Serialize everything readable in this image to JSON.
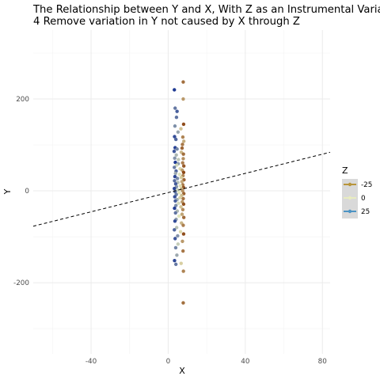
{
  "chart_data": {
    "type": "scatter",
    "title": "The Relationship between Y and X, With Z as an Instrumental Variable",
    "subtitle": "4 Remove variation in Y not caused by X through Z",
    "xlabel": "X",
    "ylabel": "Y",
    "xlim": [
      -70,
      84
    ],
    "ylim": [
      -355,
      350
    ],
    "x_ticks": [
      -40,
      0,
      40,
      80
    ],
    "y_ticks": [
      -200,
      0,
      200
    ],
    "x_tick_labels": [
      "-40",
      "0",
      "40",
      "80"
    ],
    "y_tick_labels": [
      "-200",
      "0",
      "200"
    ],
    "grid": true,
    "legend": {
      "title": "Z",
      "position": "right",
      "entries": [
        {
          "label": "-25",
          "color": "#b8953a"
        },
        {
          "label": "0",
          "color": "#e8ecc0"
        },
        {
          "label": "25",
          "color": "#4d94c4"
        }
      ]
    },
    "fit_line": {
      "style": "dashed",
      "color": "#000000",
      "x": [
        -70,
        84
      ],
      "y": [
        -77,
        84
      ]
    },
    "color_scale": {
      "low": "#8b4513",
      "mid": "#e8ecc0",
      "high": "#1f3a93",
      "domain": [
        -40,
        40
      ]
    },
    "series": [
      {
        "points": [
          {
            "x": 7.8,
            "y": 237,
            "z": -30
          },
          {
            "x": 7.8,
            "y": 200,
            "z": -20
          },
          {
            "x": 3.2,
            "y": 220,
            "z": 40
          },
          {
            "x": 3.6,
            "y": 180,
            "z": 26
          },
          {
            "x": 4.6,
            "y": 173,
            "z": 32
          },
          {
            "x": 4.3,
            "y": 160,
            "z": 27
          },
          {
            "x": 8.0,
            "y": 145,
            "z": -38
          },
          {
            "x": 3.5,
            "y": 141,
            "z": 21
          },
          {
            "x": 6.6,
            "y": 135,
            "z": -10
          },
          {
            "x": 5.1,
            "y": 128,
            "z": 16
          },
          {
            "x": 3.3,
            "y": 118,
            "z": 36
          },
          {
            "x": 7.6,
            "y": 117,
            "z": -25
          },
          {
            "x": 4.0,
            "y": 112,
            "z": 30
          },
          {
            "x": 8.1,
            "y": 108,
            "z": -15
          },
          {
            "x": 7.4,
            "y": 101,
            "z": -28
          },
          {
            "x": 3.6,
            "y": 94,
            "z": 39
          },
          {
            "x": 7.2,
            "y": 93,
            "z": -32
          },
          {
            "x": 4.6,
            "y": 91,
            "z": 23
          },
          {
            "x": 3.1,
            "y": 86,
            "z": 34
          },
          {
            "x": 6.8,
            "y": 84,
            "z": -12
          },
          {
            "x": 7.9,
            "y": 80,
            "z": -30
          },
          {
            "x": 4.2,
            "y": 78,
            "z": 12
          },
          {
            "x": 3.4,
            "y": 71,
            "z": 20
          },
          {
            "x": 7.8,
            "y": 70,
            "z": -22
          },
          {
            "x": 5.3,
            "y": 68,
            "z": 8
          },
          {
            "x": 3.7,
            "y": 62,
            "z": 40
          },
          {
            "x": 7.5,
            "y": 61,
            "z": -26
          },
          {
            "x": 5.2,
            "y": 59,
            "z": 18
          },
          {
            "x": 4.4,
            "y": 56,
            "z": 5
          },
          {
            "x": 8.1,
            "y": 54,
            "z": -35
          },
          {
            "x": 3.2,
            "y": 51,
            "z": 25
          },
          {
            "x": 6.2,
            "y": 48,
            "z": -5
          },
          {
            "x": 7.3,
            "y": 45,
            "z": -18
          },
          {
            "x": 4.1,
            "y": 43,
            "z": 31
          },
          {
            "x": 8.0,
            "y": 40,
            "z": -39
          },
          {
            "x": 3.8,
            "y": 38,
            "z": 15
          },
          {
            "x": 5.9,
            "y": 36,
            "z": 2
          },
          {
            "x": 7.7,
            "y": 33,
            "z": -24
          },
          {
            "x": 3.5,
            "y": 31,
            "z": 37
          },
          {
            "x": 6.8,
            "y": 29,
            "z": -8
          },
          {
            "x": 4.8,
            "y": 27,
            "z": 22
          },
          {
            "x": 8.2,
            "y": 24,
            "z": -32
          },
          {
            "x": 3.3,
            "y": 22,
            "z": 28
          },
          {
            "x": 7.1,
            "y": 20,
            "z": -16
          },
          {
            "x": 5.0,
            "y": 18,
            "z": 10
          },
          {
            "x": 3.9,
            "y": 15,
            "z": 33
          },
          {
            "x": 7.6,
            "y": 13,
            "z": -27
          },
          {
            "x": 6.3,
            "y": 11,
            "z": -3
          },
          {
            "x": 4.3,
            "y": 9,
            "z": 19
          },
          {
            "x": 8.0,
            "y": 7,
            "z": -36
          },
          {
            "x": 3.2,
            "y": 5,
            "z": 38
          },
          {
            "x": 6.9,
            "y": 4,
            "z": -14
          },
          {
            "x": 4.9,
            "y": 2,
            "z": 6
          },
          {
            "x": 7.5,
            "y": 0,
            "z": -21
          },
          {
            "x": 3.6,
            "y": -2,
            "z": 29
          },
          {
            "x": 5.7,
            "y": -4,
            "z": -1
          },
          {
            "x": 8.1,
            "y": -6,
            "z": -33
          },
          {
            "x": 4.2,
            "y": -8,
            "z": 24
          },
          {
            "x": 7.0,
            "y": -10,
            "z": -11
          },
          {
            "x": 3.4,
            "y": -13,
            "z": 35
          },
          {
            "x": 6.1,
            "y": -15,
            "z": -6
          },
          {
            "x": 7.8,
            "y": -17,
            "z": -29
          },
          {
            "x": 4.6,
            "y": -19,
            "z": 14
          },
          {
            "x": 3.7,
            "y": -22,
            "z": 32
          },
          {
            "x": 7.3,
            "y": -24,
            "z": -19
          },
          {
            "x": 5.4,
            "y": -27,
            "z": 4
          },
          {
            "x": 8.0,
            "y": -29,
            "z": -37
          },
          {
            "x": 4.0,
            "y": -32,
            "z": 21
          },
          {
            "x": 6.6,
            "y": -35,
            "z": -9
          },
          {
            "x": 3.3,
            "y": -38,
            "z": 39
          },
          {
            "x": 7.6,
            "y": -41,
            "z": -23
          },
          {
            "x": 4.7,
            "y": -44,
            "z": 11
          },
          {
            "x": 3.8,
            "y": -48,
            "z": 27
          },
          {
            "x": 7.2,
            "y": -51,
            "z": -17
          },
          {
            "x": 5.6,
            "y": -55,
            "z": 1
          },
          {
            "x": 8.1,
            "y": -58,
            "z": -31
          },
          {
            "x": 4.1,
            "y": -62,
            "z": 17
          },
          {
            "x": 3.5,
            "y": -66,
            "z": 36
          },
          {
            "x": 6.9,
            "y": -70,
            "z": -13
          },
          {
            "x": 7.8,
            "y": -75,
            "z": -26
          },
          {
            "x": 4.4,
            "y": -80,
            "z": 9
          },
          {
            "x": 3.2,
            "y": -85,
            "z": 30
          },
          {
            "x": 6.4,
            "y": -89,
            "z": -4
          },
          {
            "x": 8.0,
            "y": -94,
            "z": -38
          },
          {
            "x": 4.9,
            "y": -98,
            "z": 20
          },
          {
            "x": 3.6,
            "y": -104,
            "z": 34
          },
          {
            "x": 7.4,
            "y": -110,
            "z": -20
          },
          {
            "x": 5.1,
            "y": -116,
            "z": 7
          },
          {
            "x": 3.9,
            "y": -124,
            "z": 23
          },
          {
            "x": 7.7,
            "y": -131,
            "z": -28
          },
          {
            "x": 4.5,
            "y": -140,
            "z": 15
          },
          {
            "x": 3.3,
            "y": -152,
            "z": 37
          },
          {
            "x": 6.7,
            "y": -158,
            "z": -7
          },
          {
            "x": 4.0,
            "y": -160,
            "z": 26
          },
          {
            "x": 7.9,
            "y": -175,
            "z": -25
          },
          {
            "x": 7.8,
            "y": -244,
            "z": -30
          }
        ]
      }
    ]
  }
}
